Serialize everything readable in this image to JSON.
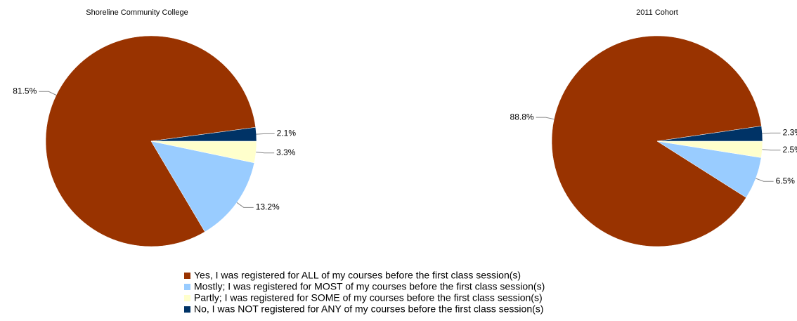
{
  "chart_data": [
    {
      "type": "pie",
      "title": "Shoreline Community College",
      "values": [
        81.5,
        13.2,
        3.3,
        2.1
      ],
      "value_labels": [
        "81.5%",
        "13.2%",
        "3.3%",
        "2.1%"
      ]
    },
    {
      "type": "pie",
      "title": "2011 Cohort",
      "values": [
        88.8,
        6.5,
        2.5,
        2.3
      ],
      "value_labels": [
        "88.8%",
        "6.5%",
        "2.5%",
        "2.3%"
      ]
    }
  ],
  "legend": {
    "labels": [
      "Yes, I was registered for ALL of my courses before the first class session(s)",
      "Mostly; I was registered for MOST of my courses before the first class session(s)",
      "Partly; I was registered for SOME of my courses before the first class session(s)",
      "No, I was NOT registered for ANY of my courses before the first class session(s)"
    ],
    "colors": [
      "#993300",
      "#99ccff",
      "#ffffcc",
      "#003366"
    ]
  }
}
